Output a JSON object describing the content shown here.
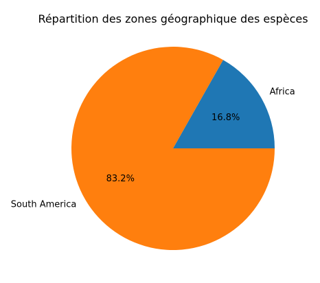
{
  "chart_data": {
    "type": "pie",
    "title": "Répartition des zones géographique des espèces",
    "labels": [
      "Africa",
      "South America"
    ],
    "values": [
      16.8,
      83.2
    ],
    "percent_labels": [
      "16.8%",
      "83.2%"
    ],
    "colors": [
      "#1f77b4",
      "#ff7f0e"
    ],
    "start_angle_deg": 0,
    "direction": "counterclockwise"
  }
}
